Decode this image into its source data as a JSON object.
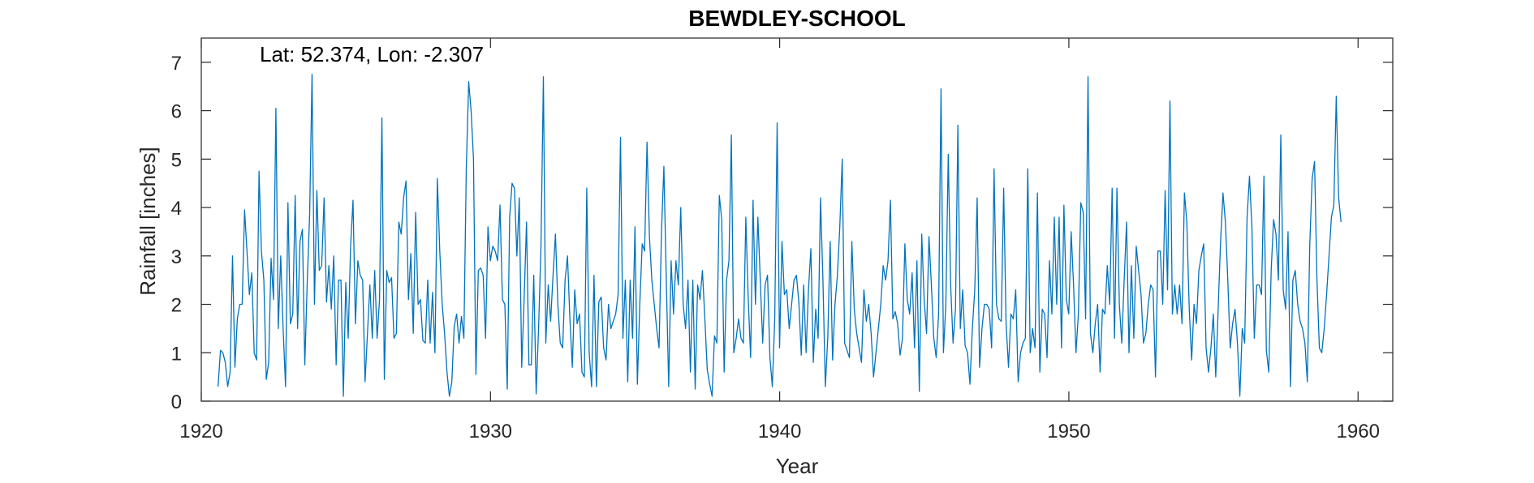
{
  "chart_data": {
    "type": "line",
    "title": "BEWDLEY-SCHOOL",
    "annotation": "Lat: 52.374, Lon: -2.307",
    "xlabel": "Year",
    "ylabel": "Rainfall [inches]",
    "xlim": [
      1920,
      1961.2
    ],
    "ylim": [
      0,
      7.5
    ],
    "xticks": [
      1920,
      1930,
      1940,
      1950,
      1960
    ],
    "yticks": [
      0,
      1,
      2,
      3,
      4,
      5,
      6,
      7
    ],
    "grid": false,
    "line_color": "#0072BD",
    "series": [
      {
        "x_start": 1920.58,
        "x_step": 0.08333,
        "values": [
          0.3,
          1.05,
          1.0,
          0.8,
          0.3,
          0.6,
          3.0,
          0.7,
          1.7,
          2.0,
          2.0,
          3.95,
          3.1,
          2.2,
          2.65,
          1.0,
          0.85,
          4.75,
          3.1,
          2.5,
          0.45,
          0.8,
          2.95,
          2.1,
          6.05,
          1.5,
          3.0,
          1.5,
          0.3,
          4.1,
          1.6,
          1.8,
          4.25,
          1.5,
          3.3,
          3.55,
          0.75,
          2.45,
          3.85,
          6.75,
          2.0,
          4.35,
          2.7,
          2.8,
          4.2,
          2.05,
          2.8,
          1.9,
          3.0,
          0.75,
          2.5,
          2.5,
          0.1,
          2.45,
          1.3,
          3.2,
          4.15,
          1.6,
          2.9,
          2.6,
          2.5,
          0.4,
          1.4,
          2.4,
          1.3,
          2.7,
          1.3,
          2.1,
          5.85,
          0.45,
          2.7,
          2.45,
          2.55,
          1.3,
          1.4,
          3.7,
          3.45,
          4.2,
          4.55,
          2.1,
          3.05,
          1.4,
          3.9,
          2.0,
          2.1,
          1.25,
          1.2,
          2.5,
          1.2,
          2.25,
          1.0,
          4.6,
          3.1,
          2.0,
          1.4,
          0.6,
          0.1,
          0.4,
          1.55,
          1.8,
          1.2,
          1.75,
          1.3,
          4.8,
          6.6,
          6.0,
          5.0,
          0.55,
          2.7,
          2.75,
          2.6,
          1.3,
          3.6,
          2.9,
          3.2,
          3.1,
          2.9,
          4.05,
          2.1,
          2.0,
          0.25,
          3.8,
          4.5,
          4.4,
          3.0,
          4.2,
          0.7,
          2.1,
          3.7,
          0.75,
          0.75,
          2.6,
          0.15,
          1.5,
          3.2,
          6.7,
          1.2,
          2.4,
          1.65,
          2.6,
          3.45,
          2.0,
          1.2,
          1.1,
          2.5,
          3.0,
          1.7,
          0.7,
          2.3,
          1.6,
          1.8,
          0.6,
          0.5,
          4.4,
          1.0,
          0.3,
          2.6,
          0.3,
          2.05,
          2.15,
          1.1,
          0.85,
          2.0,
          1.5,
          1.65,
          1.8,
          2.2,
          5.45,
          1.3,
          2.5,
          0.4,
          2.5,
          1.3,
          3.6,
          0.35,
          2.0,
          3.25,
          3.1,
          5.35,
          3.4,
          2.5,
          2.0,
          1.5,
          1.1,
          3.5,
          4.85,
          2.5,
          0.3,
          2.9,
          1.8,
          2.9,
          2.4,
          4.0,
          2.0,
          1.5,
          2.5,
          0.6,
          2.5,
          0.25,
          2.4,
          2.1,
          2.7,
          1.7,
          0.65,
          0.35,
          0.1,
          1.35,
          1.2,
          4.25,
          3.75,
          0.6,
          2.5,
          2.9,
          5.5,
          1.0,
          1.3,
          1.7,
          1.3,
          1.2,
          3.8,
          2.1,
          0.9,
          4.15,
          2.0,
          3.8,
          2.5,
          1.2,
          2.4,
          2.6,
          0.9,
          0.3,
          1.7,
          5.75,
          1.1,
          3.3,
          2.2,
          2.3,
          1.5,
          2.0,
          2.5,
          2.6,
          2.05,
          0.95,
          2.4,
          1.0,
          2.3,
          3.15,
          0.8,
          1.9,
          1.3,
          4.2,
          2.5,
          0.3,
          1.3,
          3.3,
          0.85,
          2.0,
          2.6,
          3.6,
          5.0,
          1.2,
          1.05,
          0.9,
          3.3,
          1.9,
          1.4,
          1.1,
          0.8,
          2.3,
          1.65,
          2.0,
          1.4,
          0.5,
          1.0,
          1.5,
          2.0,
          2.8,
          2.5,
          2.9,
          4.15,
          1.7,
          1.85,
          1.6,
          0.95,
          1.3,
          3.25,
          2.1,
          1.8,
          2.65,
          1.1,
          2.9,
          0.2,
          3.45,
          2.1,
          1.4,
          3.4,
          2.4,
          1.3,
          0.9,
          1.8,
          6.45,
          1.0,
          2.0,
          5.1,
          2.4,
          1.2,
          1.9,
          5.7,
          1.5,
          2.3,
          1.15,
          1.0,
          0.35,
          1.5,
          2.3,
          4.2,
          0.7,
          1.5,
          2.0,
          2.0,
          1.9,
          1.1,
          4.8,
          2.0,
          1.7,
          1.65,
          4.4,
          1.6,
          0.7,
          1.8,
          1.7,
          2.3,
          0.4,
          1.0,
          1.2,
          1.3,
          4.8,
          1.0,
          1.5,
          1.1,
          4.3,
          0.6,
          1.9,
          1.8,
          0.9,
          2.9,
          1.8,
          3.8,
          2.0,
          3.8,
          1.1,
          4.05,
          2.1,
          1.8,
          3.5,
          2.4,
          1.0,
          1.8,
          4.1,
          3.9,
          1.7,
          6.7,
          1.4,
          1.0,
          1.6,
          2.0,
          0.6,
          1.9,
          1.8,
          2.8,
          2.0,
          4.4,
          1.3,
          4.4,
          2.0,
          1.2,
          2.5,
          3.7,
          1.0,
          2.8,
          1.3,
          3.2,
          2.7,
          2.2,
          1.2,
          1.4,
          2.0,
          2.4,
          2.3,
          0.5,
          3.1,
          3.1,
          2.0,
          4.35,
          2.3,
          6.2,
          1.8,
          2.4,
          1.8,
          2.4,
          1.6,
          4.3,
          3.7,
          1.9,
          0.85,
          2.0,
          1.6,
          2.7,
          3.0,
          3.25,
          1.1,
          0.6,
          1.1,
          1.8,
          0.5,
          1.9,
          3.3,
          4.3,
          3.7,
          2.5,
          1.1,
          1.6,
          1.9,
          1.2,
          0.1,
          1.5,
          1.2,
          3.8,
          4.65,
          3.6,
          1.3,
          2.4,
          2.4,
          2.2,
          4.65,
          1.05,
          0.6,
          2.7,
          3.75,
          3.45,
          2.5,
          5.5,
          2.3,
          1.9,
          3.5,
          0.3,
          2.5,
          2.7,
          2.0,
          1.65,
          1.5,
          1.2,
          0.4,
          3.2,
          4.6,
          4.95,
          2.5,
          1.1,
          1.0,
          1.5,
          2.2,
          3.0,
          3.8,
          4.05,
          6.3,
          4.2,
          3.7
        ]
      }
    ]
  }
}
